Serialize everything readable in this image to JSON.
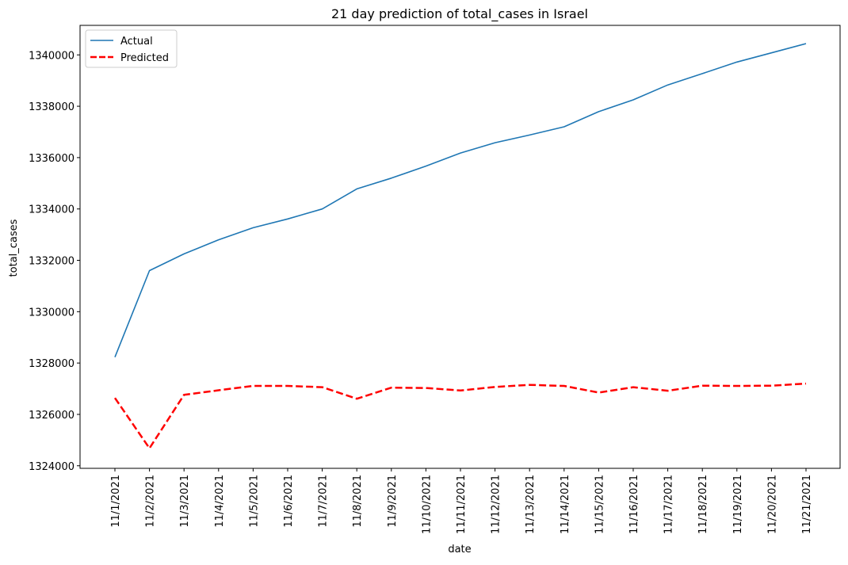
{
  "chart_data": {
    "type": "line",
    "title": "21 day prediction of total_cases in Israel",
    "xlabel": "date",
    "ylabel": "total_cases",
    "categories": [
      "11/1/2021",
      "11/2/2021",
      "11/3/2021",
      "11/4/2021",
      "11/5/2021",
      "11/6/2021",
      "11/7/2021",
      "11/8/2021",
      "11/9/2021",
      "11/10/2021",
      "11/11/2021",
      "11/12/2021",
      "11/13/2021",
      "11/14/2021",
      "11/15/2021",
      "11/16/2021",
      "11/17/2021",
      "11/18/2021",
      "11/19/2021",
      "11/20/2021",
      "11/21/2021"
    ],
    "y_ticks": [
      1324000,
      1326000,
      1328000,
      1330000,
      1332000,
      1334000,
      1336000,
      1338000,
      1340000
    ],
    "ylim": [
      1323900,
      1341150
    ],
    "grid": false,
    "legend_position": "top-left",
    "series": [
      {
        "name": "Actual",
        "color": "#1f77b4",
        "style": "solid",
        "values": [
          1328230,
          1331600,
          1332250,
          1332800,
          1333270,
          1333610,
          1334000,
          1334780,
          1335200,
          1335670,
          1336180,
          1336580,
          1336880,
          1337200,
          1337790,
          1338250,
          1338830,
          1339270,
          1339720,
          1340080,
          1340440
        ]
      },
      {
        "name": "Predicted",
        "color": "#ff0000",
        "style": "dashed",
        "values": [
          1326640,
          1324680,
          1326760,
          1326940,
          1327110,
          1327110,
          1327060,
          1326610,
          1327040,
          1327030,
          1326930,
          1327070,
          1327150,
          1327110,
          1326850,
          1327060,
          1326920,
          1327120,
          1327110,
          1327120,
          1327200
        ]
      }
    ]
  }
}
